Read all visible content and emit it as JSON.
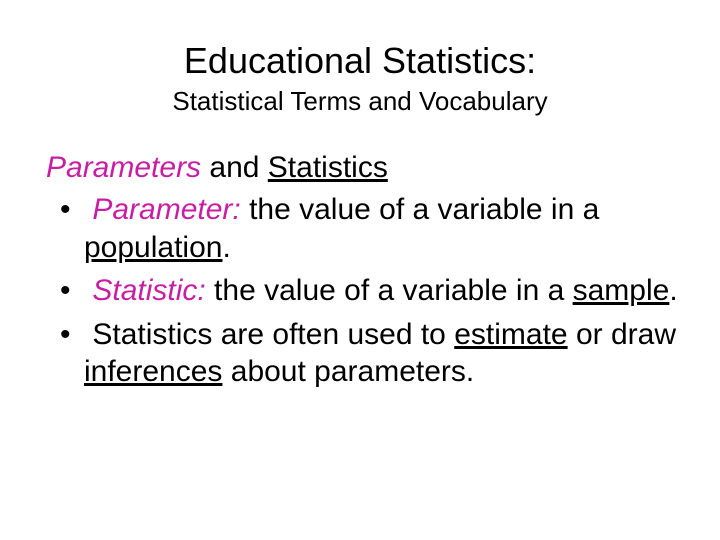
{
  "colors": {
    "background": "#ffffff",
    "text": "#000000",
    "accent": "#c81ea3"
  },
  "typography": {
    "font_family": "Comic Sans MS",
    "title_fontsize_pt": 36,
    "subtitle_fontsize_pt": 26,
    "body_fontsize_pt": 30
  },
  "title": "Educational Statistics:",
  "subtitle": "Statistical Terms and Vocabulary",
  "section": {
    "heading_em": "Parameters",
    "heading_plain": " and ",
    "heading_ul": "Statistics"
  },
  "bullets": [
    {
      "term": "Parameter:",
      "mid": " the value of a variable in a ",
      "keyword": "population",
      "tail": "."
    },
    {
      "term": "Statistic:",
      "mid": " the value of a variable in a ",
      "keyword": "sample",
      "tail": "."
    },
    {
      "pre": "Statistics are often used to ",
      "kw1": "estimate",
      "mid2": " or draw ",
      "kw2": "inferences",
      "post": " about parameters."
    }
  ]
}
